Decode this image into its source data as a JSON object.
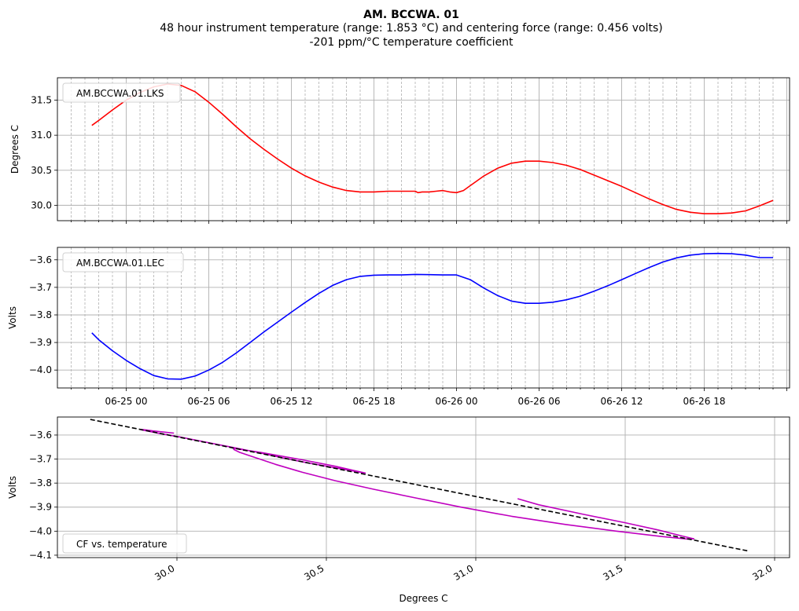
{
  "figure": {
    "title": "AM. BCCWA. 01",
    "subtitle_line1": "48 hour instrument temperature (range: 1.853 °C) and centering force (range: 0.456 volts)",
    "subtitle_line2": "-201 ppm/°C temperature coefficient"
  },
  "chart_data": [
    {
      "type": "line",
      "legend": "AM.BCCWA.01.LKS",
      "legend_position": "upper-left",
      "ylabel": "Degrees C",
      "xlabel": "",
      "grid": true,
      "color": "#ff0000",
      "x_unit": "hours since 06-24 00:00",
      "xlim": [
        19.0,
        72.2
      ],
      "ylim": [
        29.78,
        31.82
      ],
      "yticks": [
        30.0,
        30.5,
        31.0,
        31.5
      ],
      "ytick_labels": [
        "30.0",
        "30.5",
        "31.0",
        "31.5"
      ],
      "x": [
        21.5,
        22,
        23,
        24,
        25,
        26,
        27,
        28,
        29,
        30,
        31,
        32,
        33,
        34,
        35,
        36,
        37,
        38,
        39,
        40,
        41,
        42,
        43,
        44,
        45,
        45.2,
        45.5,
        46,
        46.5,
        47,
        47.5,
        48,
        48.5,
        49,
        50,
        51,
        52,
        53,
        54,
        55,
        56,
        57,
        58,
        59,
        60,
        61,
        62,
        63,
        64,
        65,
        66,
        67,
        68,
        69,
        70,
        71
      ],
      "values": [
        31.14,
        31.21,
        31.36,
        31.5,
        31.61,
        31.69,
        31.73,
        31.71,
        31.62,
        31.47,
        31.3,
        31.12,
        30.95,
        30.8,
        30.66,
        30.53,
        30.42,
        30.33,
        30.26,
        30.21,
        30.19,
        30.19,
        30.2,
        30.2,
        30.2,
        30.18,
        30.19,
        30.19,
        30.2,
        30.21,
        30.19,
        30.18,
        30.21,
        30.28,
        30.42,
        30.53,
        30.6,
        30.63,
        30.63,
        30.61,
        30.57,
        30.51,
        30.43,
        30.35,
        30.27,
        30.18,
        30.09,
        30.01,
        29.94,
        29.9,
        29.88,
        29.88,
        29.89,
        29.92,
        29.99,
        30.07
      ]
    },
    {
      "type": "line",
      "legend": "AM.BCCWA.01.LEC",
      "legend_position": "upper-left",
      "ylabel": "Volts",
      "xlabel": "",
      "grid": true,
      "color": "#0000ff",
      "x_unit": "hours since 06-24 00:00",
      "xlim": [
        19.0,
        72.2
      ],
      "xticks": [
        24,
        30,
        36,
        42,
        48,
        54,
        60,
        66
      ],
      "xtick_labels": [
        "06-25 00",
        "06-25 06",
        "06-25 12",
        "06-25 18",
        "06-26 00",
        "06-26 06",
        "06-26 12",
        "06-26 18"
      ],
      "ylim": [
        -4.065,
        -3.555
      ],
      "yticks": [
        -4.0,
        -3.9,
        -3.8,
        -3.7,
        -3.6
      ],
      "ytick_labels": [
        "−4.0",
        "−3.9",
        "−3.8",
        "−3.7",
        "−3.6"
      ],
      "x": [
        21.5,
        22,
        23,
        24,
        25,
        26,
        27,
        28,
        29,
        30,
        31,
        32,
        33,
        34,
        35,
        36,
        37,
        38,
        39,
        40,
        41,
        42,
        43,
        44,
        45,
        46,
        47,
        48,
        49,
        50,
        51,
        52,
        53,
        54,
        55,
        56,
        57,
        58,
        59,
        60,
        61,
        62,
        63,
        64,
        65,
        66,
        67,
        68,
        69,
        70,
        71
      ],
      "values": [
        -3.865,
        -3.89,
        -3.93,
        -3.965,
        -3.995,
        -4.02,
        -4.032,
        -4.033,
        -4.022,
        -4.0,
        -3.972,
        -3.938,
        -3.9,
        -3.862,
        -3.826,
        -3.79,
        -3.755,
        -3.722,
        -3.693,
        -3.672,
        -3.66,
        -3.656,
        -3.655,
        -3.655,
        -3.653,
        -3.654,
        -3.655,
        -3.655,
        -3.672,
        -3.703,
        -3.73,
        -3.75,
        -3.758,
        -3.758,
        -3.754,
        -3.745,
        -3.732,
        -3.714,
        -3.694,
        -3.672,
        -3.65,
        -3.628,
        -3.608,
        -3.593,
        -3.583,
        -3.578,
        -3.577,
        -3.578,
        -3.583,
        -3.592,
        -3.592
      ]
    },
    {
      "type": "scatter",
      "legend": "CF vs. temperature",
      "legend_position": "lower-left",
      "ylabel": "Volts",
      "xlabel": "Degrees C",
      "grid": true,
      "color": "#bf00bf",
      "fit_color": "#000000",
      "xlim": [
        29.6,
        32.05
      ],
      "xticks": [
        30.0,
        30.5,
        31.0,
        31.5,
        32.0
      ],
      "xtick_labels": [
        "30.0",
        "30.5",
        "31.0",
        "31.5",
        "32.0"
      ],
      "ylim": [
        -4.11,
        -3.525
      ],
      "yticks": [
        -4.1,
        -4.0,
        -3.9,
        -3.8,
        -3.7,
        -3.6
      ],
      "ytick_labels": [
        "−4.1",
        "−4.0",
        "−3.9",
        "−3.8",
        "−3.7",
        "−3.6"
      ],
      "fit_line": {
        "x": [
          29.71,
          31.91
        ],
        "y": [
          -3.535,
          -4.082
        ]
      },
      "points": {
        "x": [
          31.14,
          31.21,
          31.36,
          31.5,
          31.61,
          31.69,
          31.73,
          31.71,
          31.62,
          31.47,
          31.3,
          31.12,
          30.95,
          30.8,
          30.66,
          30.53,
          30.42,
          30.33,
          30.26,
          30.21,
          30.19,
          30.19,
          30.2,
          30.2,
          30.19,
          30.2,
          30.19,
          30.19,
          30.28,
          30.42,
          30.53,
          30.6,
          30.63,
          30.63,
          30.61,
          30.57,
          30.51,
          30.43,
          30.35,
          30.27,
          30.18,
          30.09,
          30.01,
          29.94,
          29.9,
          29.88,
          29.88,
          29.89,
          29.92,
          29.99
        ],
        "y": [
          -3.865,
          -3.89,
          -3.93,
          -3.965,
          -3.995,
          -4.02,
          -4.032,
          -4.033,
          -4.022,
          -4.0,
          -3.972,
          -3.938,
          -3.9,
          -3.862,
          -3.826,
          -3.79,
          -3.755,
          -3.722,
          -3.693,
          -3.672,
          -3.66,
          -3.656,
          -3.655,
          -3.655,
          -3.653,
          -3.654,
          -3.655,
          -3.655,
          -3.672,
          -3.703,
          -3.73,
          -3.75,
          -3.758,
          -3.758,
          -3.754,
          -3.745,
          -3.732,
          -3.714,
          -3.694,
          -3.672,
          -3.65,
          -3.628,
          -3.608,
          -3.593,
          -3.583,
          -3.578,
          -3.577,
          -3.578,
          -3.583,
          -3.592
        ]
      }
    }
  ]
}
